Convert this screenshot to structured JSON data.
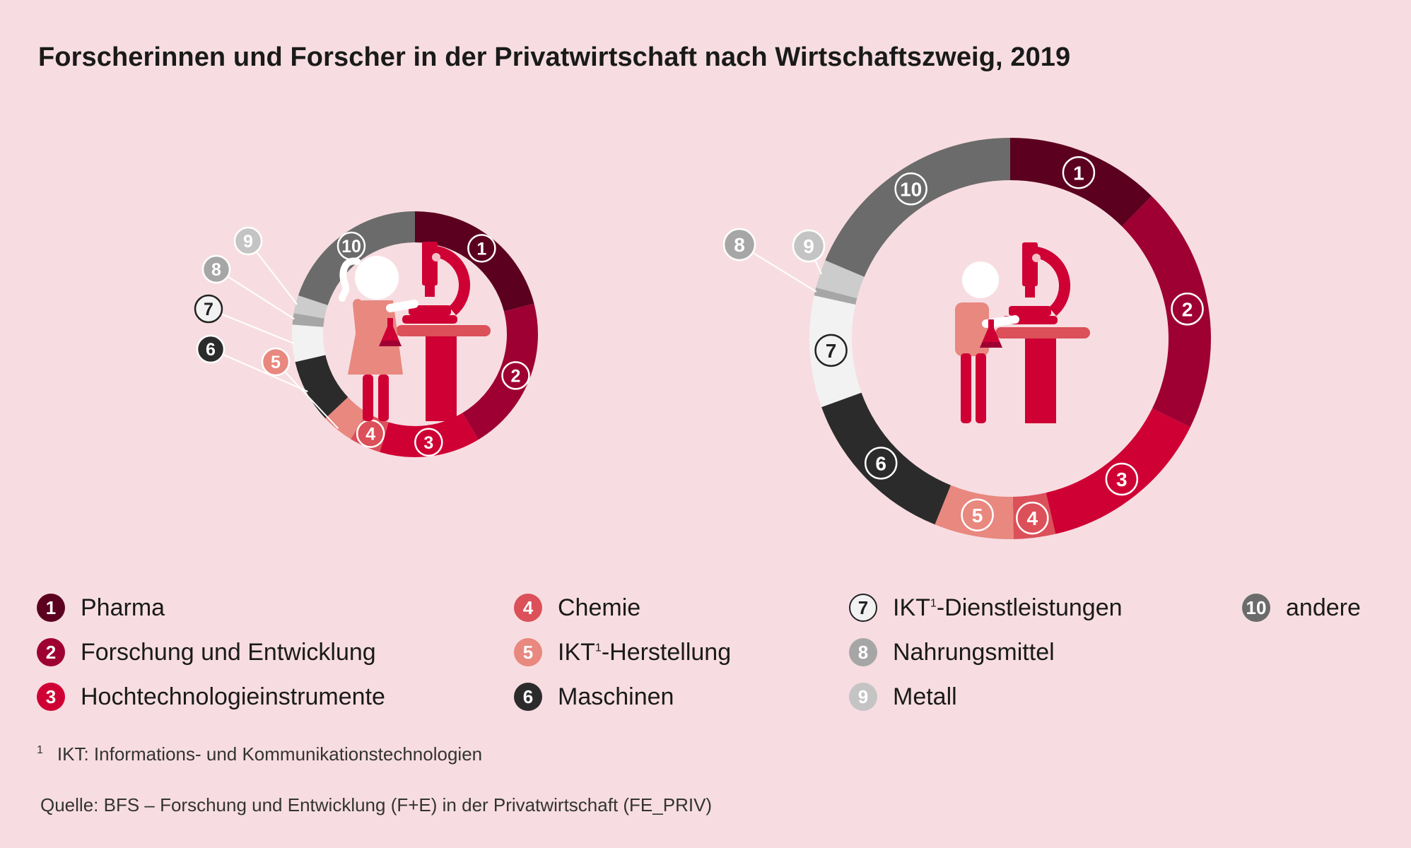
{
  "title": "Forscherinnen und Forscher in der Privatwirtschaft nach Wirtschaftszweig, 2019",
  "chart_data": {
    "type": "pie",
    "title": "Forscherinnen und Forscher in der Privatwirtschaft nach Wirtschaftszweig, 2019",
    "variant": "donut",
    "categories": [
      "Pharma",
      "Forschung und Entwicklung",
      "Hochtechnologieinstrumente",
      "Chemie",
      "IKT¹-Herstellung",
      "Maschinen",
      "IKT¹-Dienstleistungen",
      "Nahrungsmittel",
      "Metall",
      "andere"
    ],
    "colors": [
      "#5c0020",
      "#9e0033",
      "#cf0033",
      "#db5059",
      "#e8887f",
      "#2b2b2b",
      "#f2f2f2",
      "#a6a6a6",
      "#cccccc",
      "#6b6b6b"
    ],
    "series": [
      {
        "name": "",
        "values": [
          16.8,
          16.3,
          10.6,
          3.3,
          3.4,
          6.7,
          3.9,
          1.2,
          1.9,
          15.9
        ]
      },
      {
        "name": "",
        "values": [
          11.5,
          18.3,
          13.0,
          3.1,
          5.9,
          12.3,
          8.3,
          0.6,
          2.1,
          17.2
        ]
      }
    ],
    "legend_position": "bottom"
  },
  "legend": [
    {
      "num": "1",
      "label": "Pharma"
    },
    {
      "num": "2",
      "label": "Forschung und Entwicklung"
    },
    {
      "num": "3",
      "label": "Hochtechnologieinstrumente"
    },
    {
      "num": "4",
      "label": "Chemie"
    },
    {
      "num": "5",
      "label": "IKT",
      "sup": "1",
      "suffix": "-Herstellung"
    },
    {
      "num": "6",
      "label": "Maschinen"
    },
    {
      "num": "7",
      "label": "IKT",
      "sup": "1",
      "suffix": "-Dienstleistungen"
    },
    {
      "num": "8",
      "label": "Nahrungsmittel"
    },
    {
      "num": "9",
      "label": "Metall"
    },
    {
      "num": "10",
      "label": "andere"
    }
  ],
  "footnote": {
    "mark": "1",
    "text": "IKT: Informations- und Kommunikationstechnologien"
  },
  "source": "Quelle: BFS – Forschung und Entwicklung (F+E) in der Privatwirtschaft (FE_PRIV)",
  "icons": [
    "female-researcher-icon",
    "male-researcher-icon",
    "microscope-icon"
  ]
}
